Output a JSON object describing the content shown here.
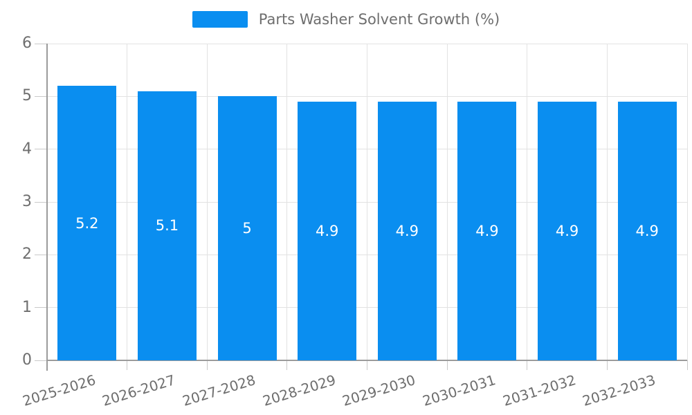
{
  "legend": {
    "label": "Parts Washer Solvent Growth (%)"
  },
  "chart_data": {
    "type": "bar",
    "title": "Parts Washer Solvent Growth (%)",
    "categories": [
      "2025-2026",
      "2026-2027",
      "2027-2028",
      "2028-2029",
      "2029-2030",
      "2030-2031",
      "2031-2032",
      "2032-2033"
    ],
    "values": [
      5.2,
      5.1,
      5,
      4.9,
      4.9,
      4.9,
      4.9,
      4.9
    ],
    "bar_labels": [
      "5.2",
      "5.1",
      "5",
      "4.9",
      "4.9",
      "4.9",
      "4.9",
      "4.9"
    ],
    "xlabel": "",
    "ylabel": "",
    "ylim": [
      0,
      6
    ],
    "yticks": [
      0,
      1,
      2,
      3,
      4,
      5,
      6
    ],
    "grid": true,
    "legend_position": "top-center",
    "colors": {
      "bar": "#0A8EF0",
      "bar_label": "#FFFFFF",
      "grid": "#E2E2E2",
      "axis": "#9B9B9B",
      "tick": "#C9C9C9",
      "tick_label": "#6E6E6E"
    }
  }
}
